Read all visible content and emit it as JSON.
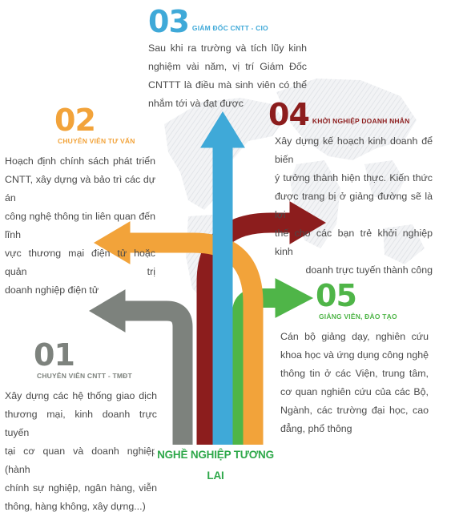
{
  "careers": [
    {
      "number": "01",
      "title": "CHUYÊN VIÊN CNTT - TMĐT",
      "color": "#7d827d",
      "lines": [
        "Xây dựng các hệ thống giao dịch",
        "thương mại, kinh doanh trực tuyến",
        "tại cơ quan và doanh nghiệp (hành",
        "chính sự nghiệp, ngân hàng, viễn",
        "thông, hàng không, xây dựng...)"
      ]
    },
    {
      "number": "02",
      "title": "CHUYÊN VIÊN TƯ VẤN",
      "color": "#f2a33a",
      "lines": [
        "Hoạch định chính sách phát triển",
        "CNTT, xây dựng và bảo trì các dự án",
        "công nghệ thông tin liên quan đến lĩnh",
        "vực thương mại điện tử hoặc quản trị",
        "doanh nghiệp điện tử"
      ]
    },
    {
      "number": "03",
      "title": "GIÁM ĐỐC CNTT - CIO",
      "color": "#3fa9d8",
      "lines": [
        "Sau khi ra trường và tích lũy kinh",
        "nghiệm vài năm, vị trí Giám Đốc",
        "CNTTT là điều mà sinh viên có thể",
        "nhắm tới và đạt được"
      ]
    },
    {
      "number": "04",
      "title": "KHỞI NGHIỆP DOANH NHÂN",
      "color": "#8c1d1d",
      "lines": [
        "Xây dựng kế hoạch kinh doanh để biến",
        "ý tưởng thành hiện thực. Kiến thức",
        "được trang bị ở giảng đường sẽ là lợi",
        "thế cho các bạn trẻ khởi nghiệp kinh",
        "doanh trực tuyến thành công"
      ]
    },
    {
      "number": "05",
      "title": "GIẢNG VIÊN, ĐÀO TẠO",
      "color": "#4fb548",
      "lines": [
        "Cán bộ giảng dạy, nghiên cứu",
        "khoa học và ứng dụng công nghệ",
        "thông tin ở các Viện, trung tâm,",
        "cơ quan nghiên cứu của các Bộ,",
        "Ngành, các trường đại học, cao",
        "đẳng, phổ thông"
      ]
    }
  ],
  "footer": {
    "label": "NGHỀ NGHIỆP TƯƠNG LAI",
    "color": "#2ea84a"
  },
  "palette": {
    "map": "#e9ebee",
    "text": "#4a4a4a"
  },
  "icons": [
    "world-map-icon"
  ]
}
